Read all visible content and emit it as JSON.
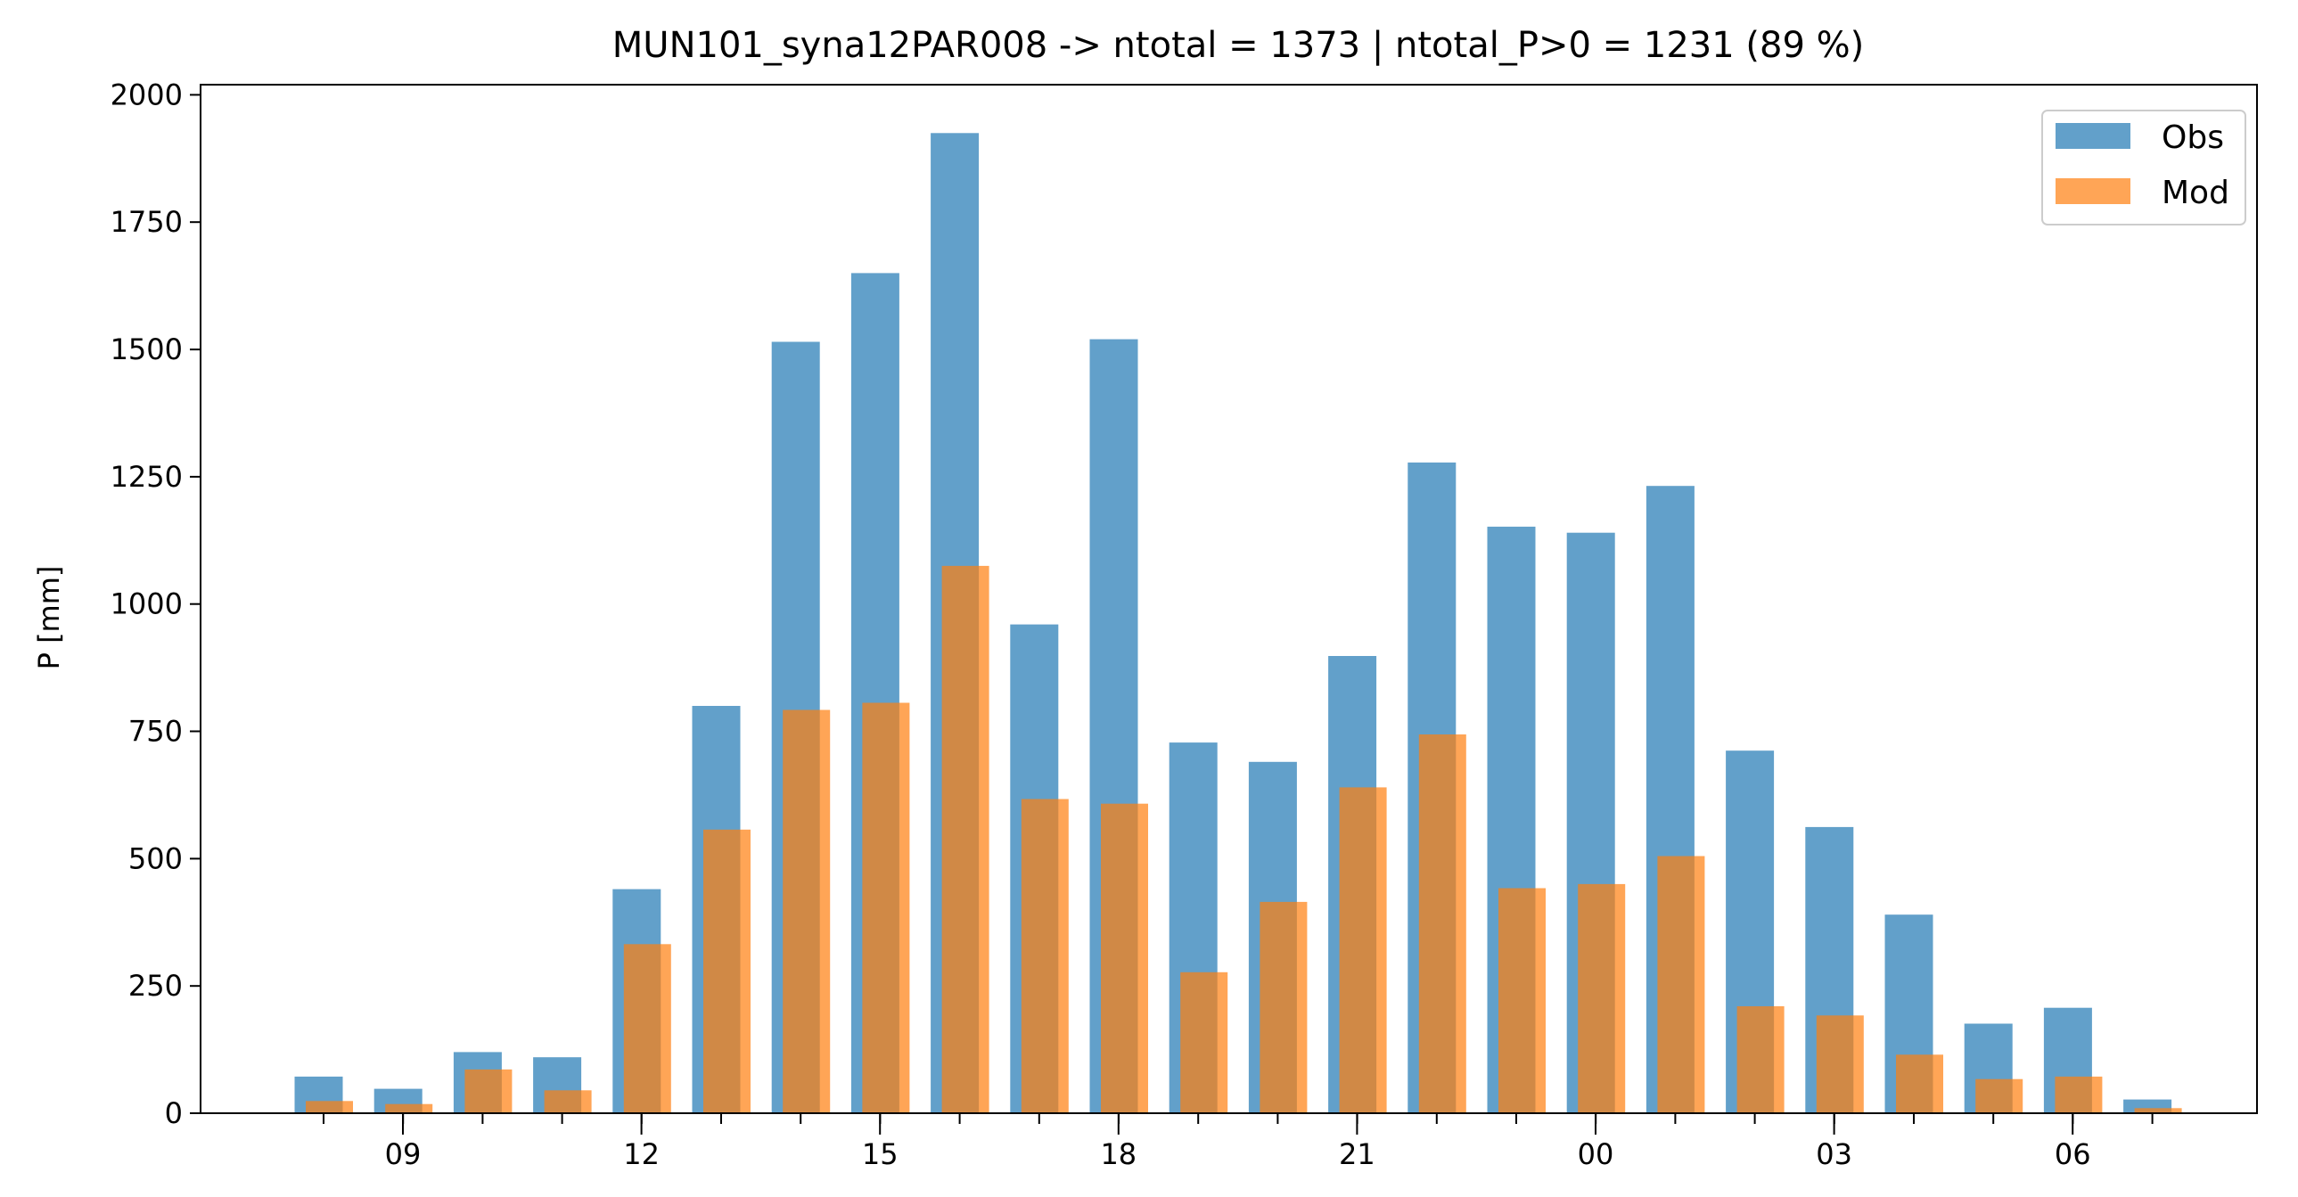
{
  "chart_data": {
    "type": "bar",
    "title": "MUN101_syna12PAR008 -> ntotal = 1373 | ntotal_P>0 = 1231 (89 %)",
    "xlabel": "",
    "ylabel": "P [mm]",
    "ylim": [
      0,
      2020
    ],
    "yticks": [
      0,
      250,
      500,
      750,
      1000,
      1250,
      1500,
      1750,
      2000
    ],
    "xtick_labels": [
      "09",
      "12",
      "15",
      "18",
      "21",
      "00",
      "03",
      "06"
    ],
    "categories": [
      "08",
      "09",
      "10",
      "11",
      "12",
      "13",
      "14",
      "15",
      "16",
      "17",
      "18",
      "19",
      "20",
      "21",
      "22",
      "23",
      "00",
      "01",
      "02",
      "03",
      "04",
      "05",
      "06",
      "07"
    ],
    "series": [
      {
        "name": "Obs",
        "color": "#1f77b4",
        "opacity": 0.7,
        "values": [
          72,
          48,
          120,
          110,
          440,
          800,
          1515,
          1650,
          1925,
          960,
          1520,
          728,
          690,
          898,
          1278,
          1152,
          1140,
          1232,
          712,
          562,
          390,
          176,
          207,
          27
        ]
      },
      {
        "name": "Mod",
        "color": "#ff7f0e",
        "opacity": 0.7,
        "values": [
          24,
          18,
          86,
          45,
          332,
          557,
          792,
          806,
          1075,
          617,
          608,
          277,
          415,
          640,
          744,
          442,
          450,
          505,
          210,
          192,
          115,
          67,
          72,
          10
        ]
      }
    ],
    "legend": {
      "position": "top-right"
    },
    "grid": false
  }
}
